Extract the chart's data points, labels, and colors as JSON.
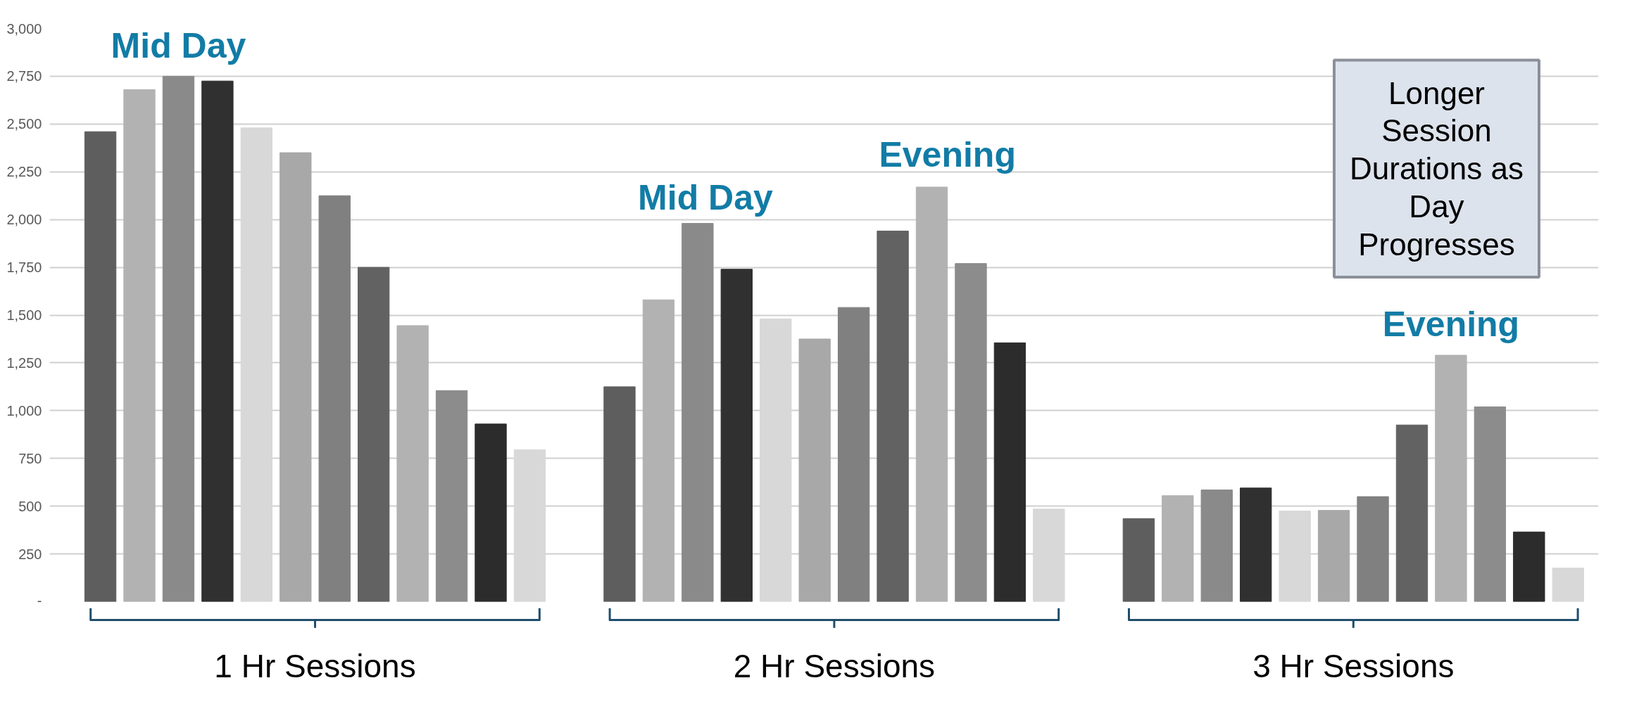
{
  "chart_data": {
    "type": "bar",
    "categories": [
      "1 Hr Sessions",
      "2 Hr Sessions",
      "3 Hr Sessions"
    ],
    "series": [
      {
        "color": "#5e5e5e",
        "values": [
          2460,
          1125,
          435
        ]
      },
      {
        "color": "#b2b2b2",
        "values": [
          2680,
          1580,
          555
        ]
      },
      {
        "color": "#8a8a8a",
        "values": [
          2750,
          1980,
          585
        ]
      },
      {
        "color": "#303030",
        "values": [
          2725,
          1740,
          595
        ]
      },
      {
        "color": "#d8d8d8",
        "values": [
          2480,
          1480,
          475
        ]
      },
      {
        "color": "#a8a8a8",
        "values": [
          2350,
          1375,
          478
        ]
      },
      {
        "color": "#808080",
        "values": [
          2125,
          1540,
          550
        ]
      },
      {
        "color": "#626262",
        "values": [
          1750,
          1940,
          925
        ]
      },
      {
        "color": "#b2b2b2",
        "values": [
          1445,
          2170,
          1290
        ]
      },
      {
        "color": "#8c8c8c",
        "values": [
          1105,
          1770,
          1020
        ]
      },
      {
        "color": "#2c2c2c",
        "values": [
          930,
          1355,
          365
        ]
      },
      {
        "color": "#d8d8d8",
        "values": [
          795,
          485,
          176
        ]
      }
    ],
    "ylim": [
      0,
      3000
    ],
    "yticks": [
      {
        "value": 0,
        "label": "-"
      },
      250,
      500,
      750,
      {
        "value": 1000,
        "label": "1,000"
      },
      {
        "value": 1250,
        "label": "1,250"
      },
      {
        "value": 1500,
        "label": "1,500"
      },
      {
        "value": 1750,
        "label": "1,750"
      },
      {
        "value": 2000,
        "label": "2,000"
      },
      {
        "value": 2250,
        "label": "2,250"
      },
      {
        "value": 2500,
        "label": "2,500"
      },
      {
        "value": 2750,
        "label": "2,750"
      },
      {
        "value": 3000,
        "label": "3,000"
      }
    ],
    "grid": "y",
    "annotations": [
      "Mid Day",
      "Mid Day",
      "Evening",
      "Evening",
      "Longer Session Durations as Day Progresses"
    ]
  }
}
